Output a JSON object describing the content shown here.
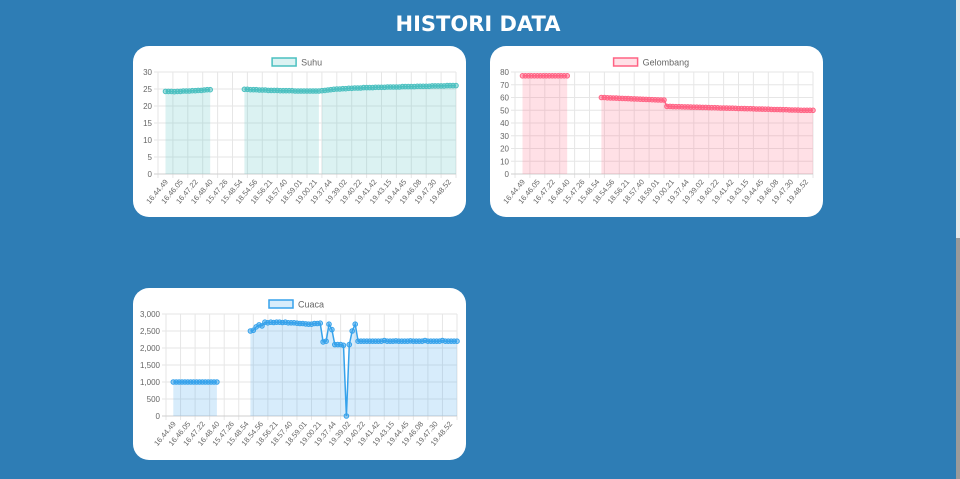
{
  "page": {
    "title": "HISTORI DATA"
  },
  "chart_data": [
    {
      "type": "line",
      "legend": "Suhu",
      "color": "#4bc0c0",
      "fill": "rgba(75,192,192,0.2)",
      "ylim": [
        0,
        30
      ],
      "yticks": [
        0,
        5,
        10,
        15,
        20,
        25,
        30
      ],
      "ytick_labels": [
        "0",
        "5",
        "10",
        "15",
        "20",
        "25",
        "30"
      ],
      "xlabels": [
        "16.44.49",
        "16.46.05",
        "16.47.22",
        "16.48.40",
        "15.47.26",
        "15.48.54",
        "18.54.56",
        "18.56.21",
        "18.57.40",
        "18.59.01",
        "19.00.21",
        "19.37.44",
        "19.39.02",
        "19.40.22",
        "19.41.42",
        "19.43.15",
        "19.44.45",
        "19.46.08",
        "19.47.30",
        "19.48.52"
      ],
      "segments": [
        {
          "x": [
            0.0,
            0.2,
            0.4,
            0.6,
            0.8,
            1.0,
            1.2,
            1.4,
            1.6,
            1.8,
            2.0,
            2.2,
            2.4,
            2.6,
            2.8,
            3.0
          ],
          "y": [
            24.3,
            24.3,
            24.3,
            24.2,
            24.3,
            24.3,
            24.4,
            24.4,
            24.4,
            24.5,
            24.5,
            24.6,
            24.6,
            24.7,
            24.8,
            24.8
          ]
        },
        {
          "x": [
            5.3,
            5.5,
            5.7,
            5.9,
            6.1,
            6.3,
            6.5,
            6.7,
            6.9,
            7.1,
            7.3,
            7.5,
            7.7,
            7.9,
            8.1,
            8.3,
            8.5,
            8.7,
            8.9,
            9.1,
            9.3,
            9.5,
            9.7,
            9.9,
            10.1,
            10.3
          ],
          "y": [
            24.9,
            24.9,
            24.8,
            24.8,
            24.8,
            24.7,
            24.7,
            24.7,
            24.6,
            24.6,
            24.6,
            24.6,
            24.5,
            24.5,
            24.5,
            24.5,
            24.5,
            24.4,
            24.4,
            24.4,
            24.4,
            24.4,
            24.4,
            24.4,
            24.4,
            24.4
          ]
        },
        {
          "x": [
            10.5,
            10.7,
            10.9,
            11.1,
            11.3,
            11.5,
            11.7,
            11.9,
            12.1,
            12.3,
            12.5,
            12.7,
            12.9,
            13.1,
            13.3,
            13.5,
            13.7,
            13.9,
            14.1,
            14.3,
            14.5,
            14.7,
            14.9,
            15.1,
            15.3,
            15.5,
            15.7,
            15.9,
            16.1,
            16.3,
            16.5,
            16.7,
            16.9,
            17.1,
            17.3,
            17.5,
            17.7,
            17.9,
            18.1,
            18.3,
            18.5,
            18.7,
            18.9,
            19.1,
            19.3,
            19.5
          ],
          "y": [
            24.5,
            24.6,
            24.7,
            24.8,
            24.9,
            25.0,
            25.0,
            25.1,
            25.1,
            25.2,
            25.2,
            25.3,
            25.3,
            25.3,
            25.4,
            25.4,
            25.4,
            25.4,
            25.5,
            25.5,
            25.5,
            25.5,
            25.6,
            25.6,
            25.6,
            25.6,
            25.6,
            25.7,
            25.7,
            25.7,
            25.7,
            25.7,
            25.8,
            25.8,
            25.8,
            25.8,
            25.8,
            25.9,
            25.9,
            25.9,
            25.9,
            25.9,
            26.0,
            26.0,
            26.0,
            26.0
          ]
        }
      ]
    },
    {
      "type": "line",
      "legend": "Gelombang",
      "color": "#ff6384",
      "fill": "rgba(255,99,132,0.2)",
      "ylim": [
        0,
        80
      ],
      "yticks": [
        0,
        10,
        20,
        30,
        40,
        50,
        60,
        70,
        80
      ],
      "ytick_labels": [
        "0",
        "10",
        "20",
        "30",
        "40",
        "50",
        "60",
        "70",
        "80"
      ],
      "xlabels": [
        "16.44.49",
        "16.46.05",
        "16.47.22",
        "16.48.40",
        "15.47.26",
        "15.48.54",
        "18.54.56",
        "18.56.21",
        "18.57.40",
        "18.59.01",
        "19.00.21",
        "19.37.44",
        "19.39.02",
        "19.40.22",
        "19.41.42",
        "19.43.15",
        "19.44.45",
        "19.46.08",
        "19.47.30",
        "19.48.52"
      ],
      "segments": [
        {
          "x": [
            0.0,
            0.2,
            0.4,
            0.6,
            0.8,
            1.0,
            1.2,
            1.4,
            1.6,
            1.8,
            2.0,
            2.2,
            2.4,
            2.6,
            2.8,
            3.0
          ],
          "y": [
            77,
            77,
            77,
            77,
            77,
            77,
            77,
            77,
            77,
            77,
            77,
            77,
            77,
            77,
            77,
            77
          ]
        },
        {
          "x": [
            5.3,
            5.5,
            5.7,
            5.9,
            6.1,
            6.3,
            6.5,
            6.7,
            6.9,
            7.1,
            7.3,
            7.5,
            7.7,
            7.9,
            8.1,
            8.3,
            8.5,
            8.7,
            8.9,
            9.1,
            9.3,
            9.5,
            9.7,
            9.9,
            10.1,
            10.3,
            10.5,
            10.7,
            10.9,
            11.1,
            11.3,
            11.5,
            11.7,
            11.9,
            12.1,
            12.3,
            12.5,
            12.7,
            12.9,
            13.1,
            13.3,
            13.5,
            13.7,
            13.9,
            14.1,
            14.3,
            14.5,
            14.7,
            14.9,
            15.1,
            15.3,
            15.5,
            15.7,
            15.9,
            16.1,
            16.3,
            16.5,
            16.7,
            16.9,
            17.1,
            17.3,
            17.5,
            17.7,
            17.9,
            18.1,
            18.3,
            18.5,
            18.7,
            18.9,
            19.1,
            19.3,
            19.5
          ],
          "y": [
            60.0,
            60.0,
            59.8,
            59.7,
            59.6,
            59.5,
            59.4,
            59.3,
            59.2,
            59.1,
            59.0,
            58.9,
            58.8,
            58.7,
            58.6,
            58.5,
            58.4,
            58.3,
            58.2,
            58.1,
            58.0,
            58.0,
            53.0,
            53.0,
            52.9,
            52.8,
            52.8,
            52.7,
            52.6,
            52.6,
            52.5,
            52.4,
            52.4,
            52.3,
            52.2,
            52.2,
            52.1,
            52.0,
            52.0,
            51.9,
            51.8,
            51.8,
            51.7,
            51.6,
            51.6,
            51.5,
            51.4,
            51.4,
            51.3,
            51.2,
            51.2,
            51.1,
            51.0,
            51.0,
            50.9,
            50.8,
            50.8,
            50.7,
            50.6,
            50.6,
            50.5,
            50.4,
            50.4,
            50.3,
            50.2,
            50.2,
            50.1,
            50.0,
            50.0,
            50.0,
            50.0,
            50.0
          ]
        }
      ]
    },
    {
      "type": "line",
      "legend": "Cuaca",
      "color": "#36a2eb",
      "fill": "rgba(54,162,235,0.2)",
      "ylim": [
        0,
        3000
      ],
      "yticks": [
        0,
        500,
        1000,
        1500,
        2000,
        2500,
        3000
      ],
      "ytick_labels": [
        "0",
        "500",
        "1,000",
        "1,500",
        "2,000",
        "2,500",
        "3,000"
      ],
      "xlabels": [
        "16.44.49",
        "16.46.05",
        "16.47.22",
        "16.48.40",
        "15.47.26",
        "15.48.54",
        "18.54.56",
        "18.56.21",
        "18.57.40",
        "18.59.01",
        "19.00.21",
        "19.37.44",
        "19.39.02",
        "19.40.22",
        "19.41.42",
        "19.43.15",
        "19.44.45",
        "19.46.08",
        "19.47.30",
        "19.48.52"
      ],
      "segments": [
        {
          "x": [
            0.0,
            0.2,
            0.4,
            0.6,
            0.8,
            1.0,
            1.2,
            1.4,
            1.6,
            1.8,
            2.0,
            2.2,
            2.4,
            2.6,
            2.8,
            3.0
          ],
          "y": [
            1000,
            1000,
            1000,
            1000,
            1000,
            1000,
            1000,
            1000,
            1000,
            1000,
            1000,
            1000,
            1000,
            1000,
            1000,
            1000
          ]
        },
        {
          "x": [
            5.3,
            5.5,
            5.7,
            5.9,
            6.1,
            6.3,
            6.5,
            6.7,
            6.9,
            7.1,
            7.3,
            7.5,
            7.7,
            7.9,
            8.1,
            8.3,
            8.5,
            8.7,
            8.9,
            9.1,
            9.3,
            9.5,
            9.7,
            9.9,
            10.1,
            10.3,
            10.5,
            10.7,
            10.9,
            11.1,
            11.3,
            11.5,
            11.7,
            11.9,
            12.1,
            12.3,
            12.5,
            12.7,
            12.9,
            13.1,
            13.3,
            13.5,
            13.7,
            13.9,
            14.1,
            14.3,
            14.5,
            14.7,
            14.9,
            15.1,
            15.3,
            15.5,
            15.7,
            15.9,
            16.1,
            16.3,
            16.5,
            16.7,
            16.9,
            17.1,
            17.3,
            17.5,
            17.7,
            17.9,
            18.1,
            18.3,
            18.5,
            18.7,
            18.9,
            19.1,
            19.3,
            19.5
          ],
          "y": [
            2500,
            2520,
            2620,
            2680,
            2650,
            2760,
            2740,
            2760,
            2750,
            2760,
            2760,
            2750,
            2760,
            2740,
            2740,
            2740,
            2730,
            2720,
            2720,
            2710,
            2700,
            2700,
            2720,
            2720,
            2730,
            2180,
            2200,
            2700,
            2540,
            2100,
            2100,
            2100,
            2080,
            0,
            2100,
            2500,
            2700,
            2200,
            2200,
            2200,
            2200,
            2200,
            2200,
            2200,
            2200,
            2200,
            2220,
            2200,
            2200,
            2200,
            2210,
            2200,
            2200,
            2200,
            2200,
            2210,
            2200,
            2200,
            2200,
            2200,
            2220,
            2200,
            2200,
            2200,
            2200,
            2200,
            2220,
            2200,
            2200,
            2200,
            2200,
            2200
          ]
        }
      ]
    }
  ]
}
